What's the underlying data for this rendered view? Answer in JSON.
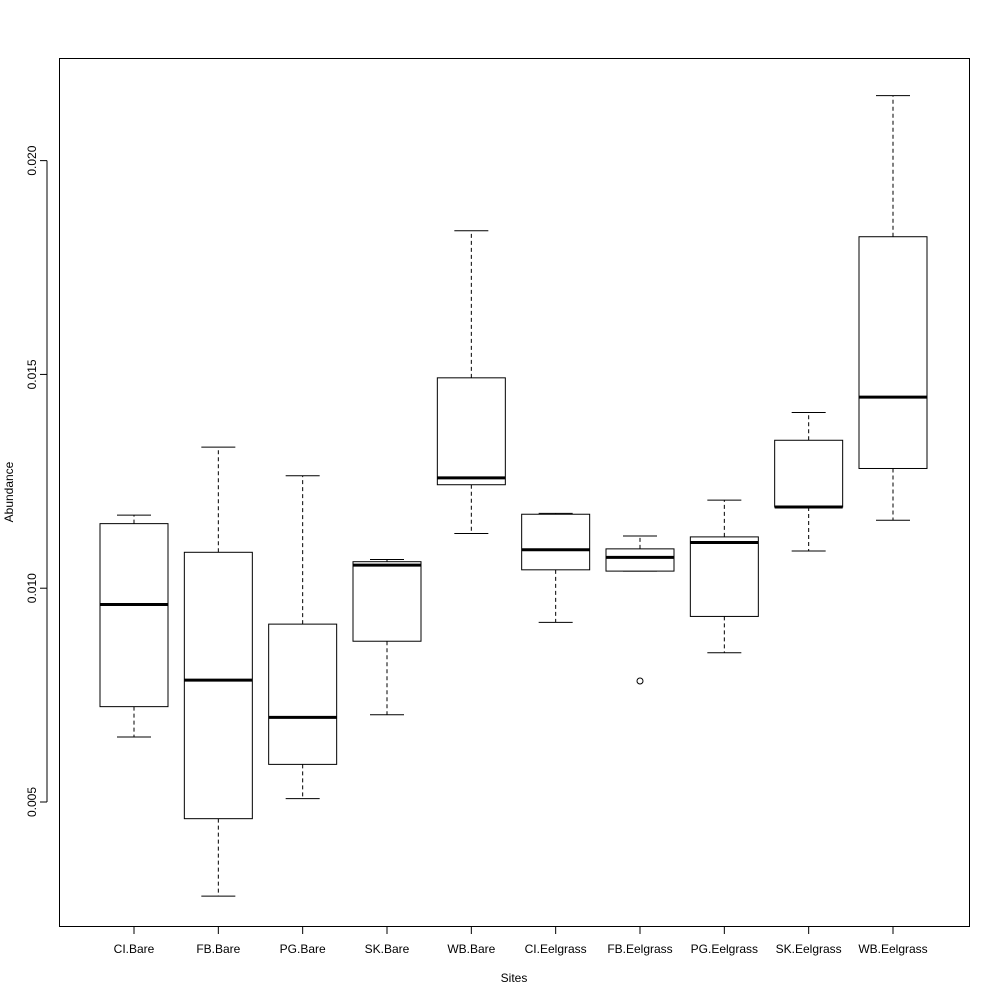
{
  "chart_data": {
    "type": "boxplot",
    "title": "",
    "xlabel": "Sites",
    "ylabel": "Abundance",
    "ylim": [
      0.0021,
      0.0224
    ],
    "yticks": [
      0.005,
      0.01,
      0.015,
      0.02
    ],
    "ytick_labels": [
      "0.005",
      "0.010",
      "0.015",
      "0.020"
    ],
    "grid": false,
    "categories": [
      "CI.Bare",
      "FB.Bare",
      "PG.Bare",
      "SK.Bare",
      "WB.Bare",
      "CI.Eelgrass",
      "FB.Eelgrass",
      "PG.Eelgrass",
      "SK.Eelgrass",
      "WB.Eelgrass"
    ],
    "boxes": [
      {
        "label": "CI.Bare",
        "whisker_low": 0.00652,
        "q1": 0.00723,
        "median": 0.00962,
        "q3": 0.01151,
        "whisker_high": 0.01171,
        "outliers": []
      },
      {
        "label": "FB.Bare",
        "whisker_low": 0.0028,
        "q1": 0.00461,
        "median": 0.00785,
        "q3": 0.01084,
        "whisker_high": 0.0133,
        "outliers": []
      },
      {
        "label": "PG.Bare",
        "whisker_low": 0.00508,
        "q1": 0.00588,
        "median": 0.00698,
        "q3": 0.00916,
        "whisker_high": 0.01263,
        "outliers": []
      },
      {
        "label": "SK.Bare",
        "whisker_low": 0.00704,
        "q1": 0.00876,
        "median": 0.01054,
        "q3": 0.01062,
        "whisker_high": 0.01067,
        "outliers": []
      },
      {
        "label": "WB.Bare",
        "whisker_low": 0.01128,
        "q1": 0.01242,
        "median": 0.01258,
        "q3": 0.01492,
        "whisker_high": 0.01836,
        "outliers": []
      },
      {
        "label": "CI.Eelgrass",
        "whisker_low": 0.0092,
        "q1": 0.01043,
        "median": 0.0109,
        "q3": 0.01173,
        "whisker_high": 0.01175,
        "outliers": []
      },
      {
        "label": "FB.Eelgrass",
        "whisker_low": 0.0104,
        "q1": 0.0104,
        "median": 0.01072,
        "q3": 0.01092,
        "whisker_high": 0.01122,
        "outliers": [
          0.00783
        ]
      },
      {
        "label": "PG.Eelgrass",
        "whisker_low": 0.00849,
        "q1": 0.00934,
        "median": 0.01107,
        "q3": 0.0112,
        "whisker_high": 0.01206,
        "outliers": []
      },
      {
        "label": "SK.Eelgrass",
        "whisker_low": 0.01087,
        "q1": 0.0119,
        "median": 0.0119,
        "q3": 0.01346,
        "whisker_high": 0.01411,
        "outliers": []
      },
      {
        "label": "WB.Eelgrass",
        "whisker_low": 0.01159,
        "q1": 0.0128,
        "median": 0.01447,
        "q3": 0.01822,
        "whisker_high": 0.02152,
        "outliers": []
      }
    ]
  }
}
